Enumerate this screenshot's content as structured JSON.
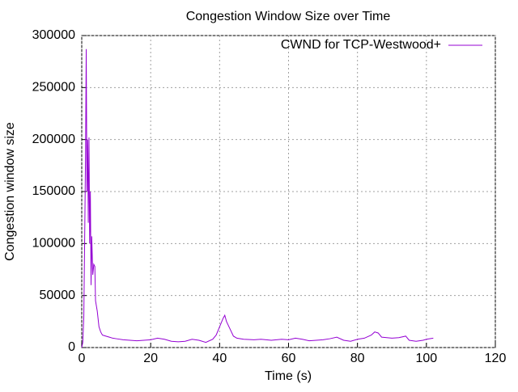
{
  "chart_data": {
    "type": "line",
    "title": "Congestion Window Size over Time",
    "xlabel": "Time (s)",
    "ylabel": "Congestion window size",
    "x": [
      0,
      0.3,
      0.6,
      0.9,
      1.1,
      1.3,
      1.5,
      1.7,
      1.9,
      2.1,
      2.3,
      2.5,
      2.7,
      2.9,
      3.2,
      3.5,
      3.8,
      4.0,
      4.5,
      5,
      5.5,
      6,
      7,
      8,
      9,
      10,
      12,
      14,
      16,
      18,
      20,
      22,
      24,
      26,
      28,
      30,
      32,
      34,
      36,
      38,
      39,
      40,
      41,
      41.5,
      42,
      43,
      44,
      45,
      47,
      50,
      52,
      55,
      58,
      60,
      62,
      64,
      66,
      68,
      70,
      72,
      74,
      76,
      78,
      80,
      82,
      84,
      85,
      86,
      87,
      90,
      92,
      94,
      95,
      97,
      99,
      100,
      102
    ],
    "series": [
      {
        "name": "CWND for TCP-Westwood+",
        "color": "#9400d3",
        "values": [
          0,
          5000,
          30000,
          120000,
          185000,
          287000,
          150000,
          200000,
          120000,
          202000,
          100000,
          150000,
          60000,
          107000,
          70000,
          80000,
          78000,
          45000,
          35000,
          20000,
          15000,
          12000,
          11000,
          10000,
          9000,
          8500,
          7500,
          7000,
          6500,
          7000,
          7500,
          9000,
          8000,
          6000,
          5500,
          6000,
          8000,
          7000,
          5000,
          8000,
          12000,
          20000,
          28000,
          31000,
          25000,
          18000,
          11000,
          9000,
          8000,
          7500,
          8000,
          7000,
          8000,
          7500,
          9000,
          8000,
          6500,
          7000,
          7500,
          8500,
          10000,
          7000,
          6000,
          8000,
          9000,
          12000,
          15000,
          14000,
          10000,
          9000,
          9500,
          11000,
          7000,
          6000,
          7000,
          8000,
          9000
        ]
      }
    ],
    "xlim": [
      0,
      120
    ],
    "xticks": [
      0,
      20,
      40,
      60,
      80,
      100,
      120
    ],
    "ylim": [
      0,
      300000
    ],
    "yticks": [
      0,
      50000,
      100000,
      150000,
      200000,
      250000,
      300000
    ],
    "grid": true,
    "legend": "top-right"
  }
}
